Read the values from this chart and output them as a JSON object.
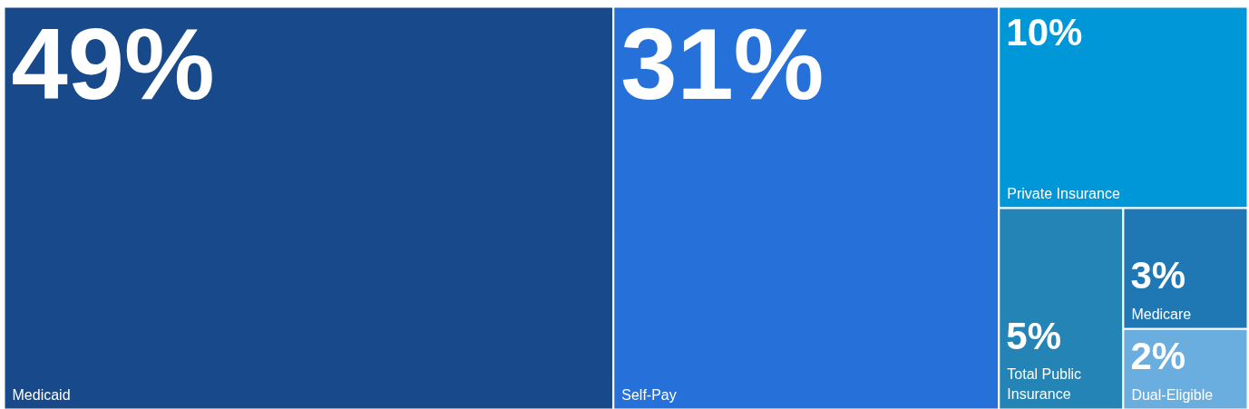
{
  "chart_data": {
    "type": "other",
    "categories": [
      "Medicaid",
      "Self-Pay",
      "Private Insurance",
      "Total Public Insurance",
      "Medicare",
      "Dual-Eligible"
    ],
    "values": [
      49,
      31,
      10,
      5,
      3,
      2
    ],
    "value_labels": [
      "49%",
      "31%",
      "10%",
      "5%",
      "3%",
      "2%"
    ],
    "colors": [
      "#18498a",
      "#2571d9",
      "#0097d9",
      "#2484b5",
      "#1f78b4",
      "#6aaee0"
    ]
  }
}
